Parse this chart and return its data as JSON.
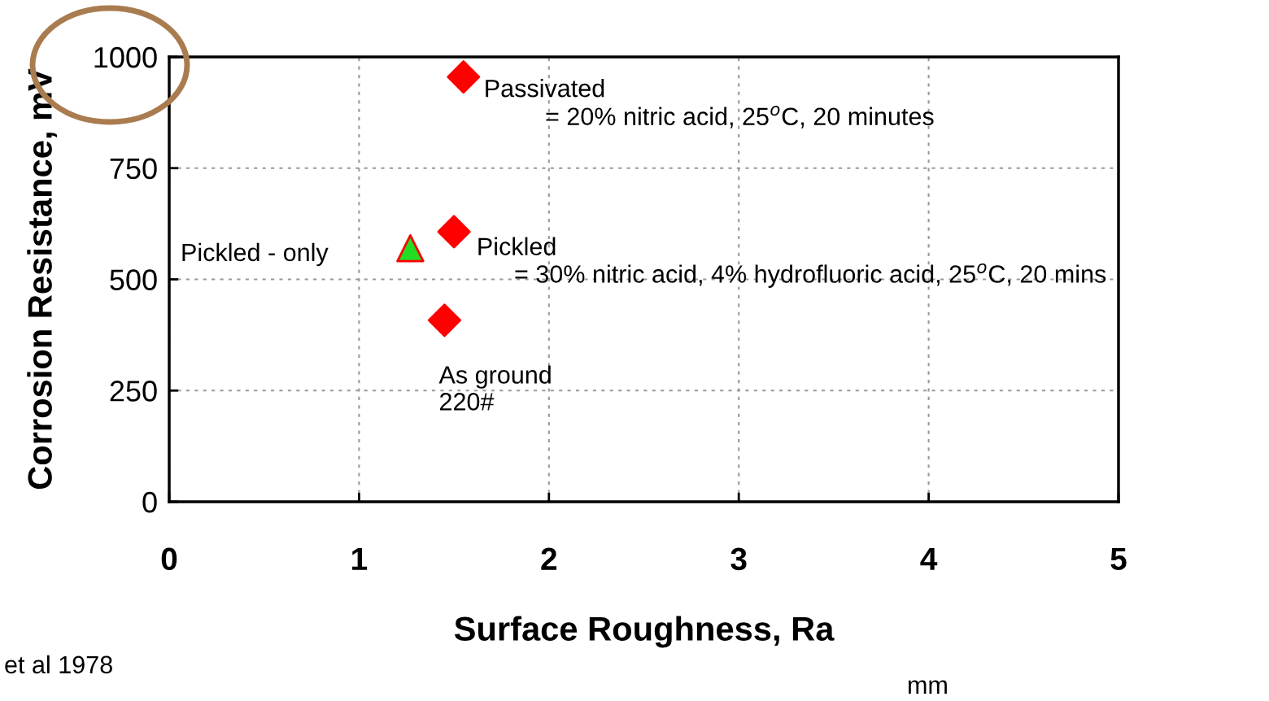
{
  "chart_data": {
    "type": "scatter",
    "xlabel": "Surface Roughness, Ra",
    "ylabel": "Corrosion Resistance, mV",
    "xlim": [
      0,
      5
    ],
    "xticks": [
      0,
      1,
      2,
      3,
      4,
      5
    ],
    "ylim": [
      0,
      1000
    ],
    "yticks": [
      0,
      250,
      500,
      750,
      1000
    ],
    "grid": true,
    "series": [
      {
        "color": "#ff0000",
        "marker": "diamond",
        "x": [
          1.55,
          1.5,
          1.45
        ],
        "values": [
          955,
          607,
          408
        ]
      },
      {
        "color": "#22dd22",
        "marker": "triangle",
        "x": [
          1.27
        ],
        "values": [
          570
        ]
      }
    ],
    "annotations": [
      {
        "text": "Passivated",
        "x": 1.55,
        "y": 955
      },
      "= 20% nitric acid, 25$^{o}$C, 20 minutes",
      {
        "text": "Pickled",
        "x": 1.5,
        "y": 607
      },
      "= 30% nitric acid, 4% hydrofluoric acid, 25$^{o}$C, 20 mins",
      "Pickled - only",
      {
        "text": "As ground\n220#",
        "x": 1.45,
        "y": 408
      },
      "et al 1978",
      "mm"
    ]
  }
}
